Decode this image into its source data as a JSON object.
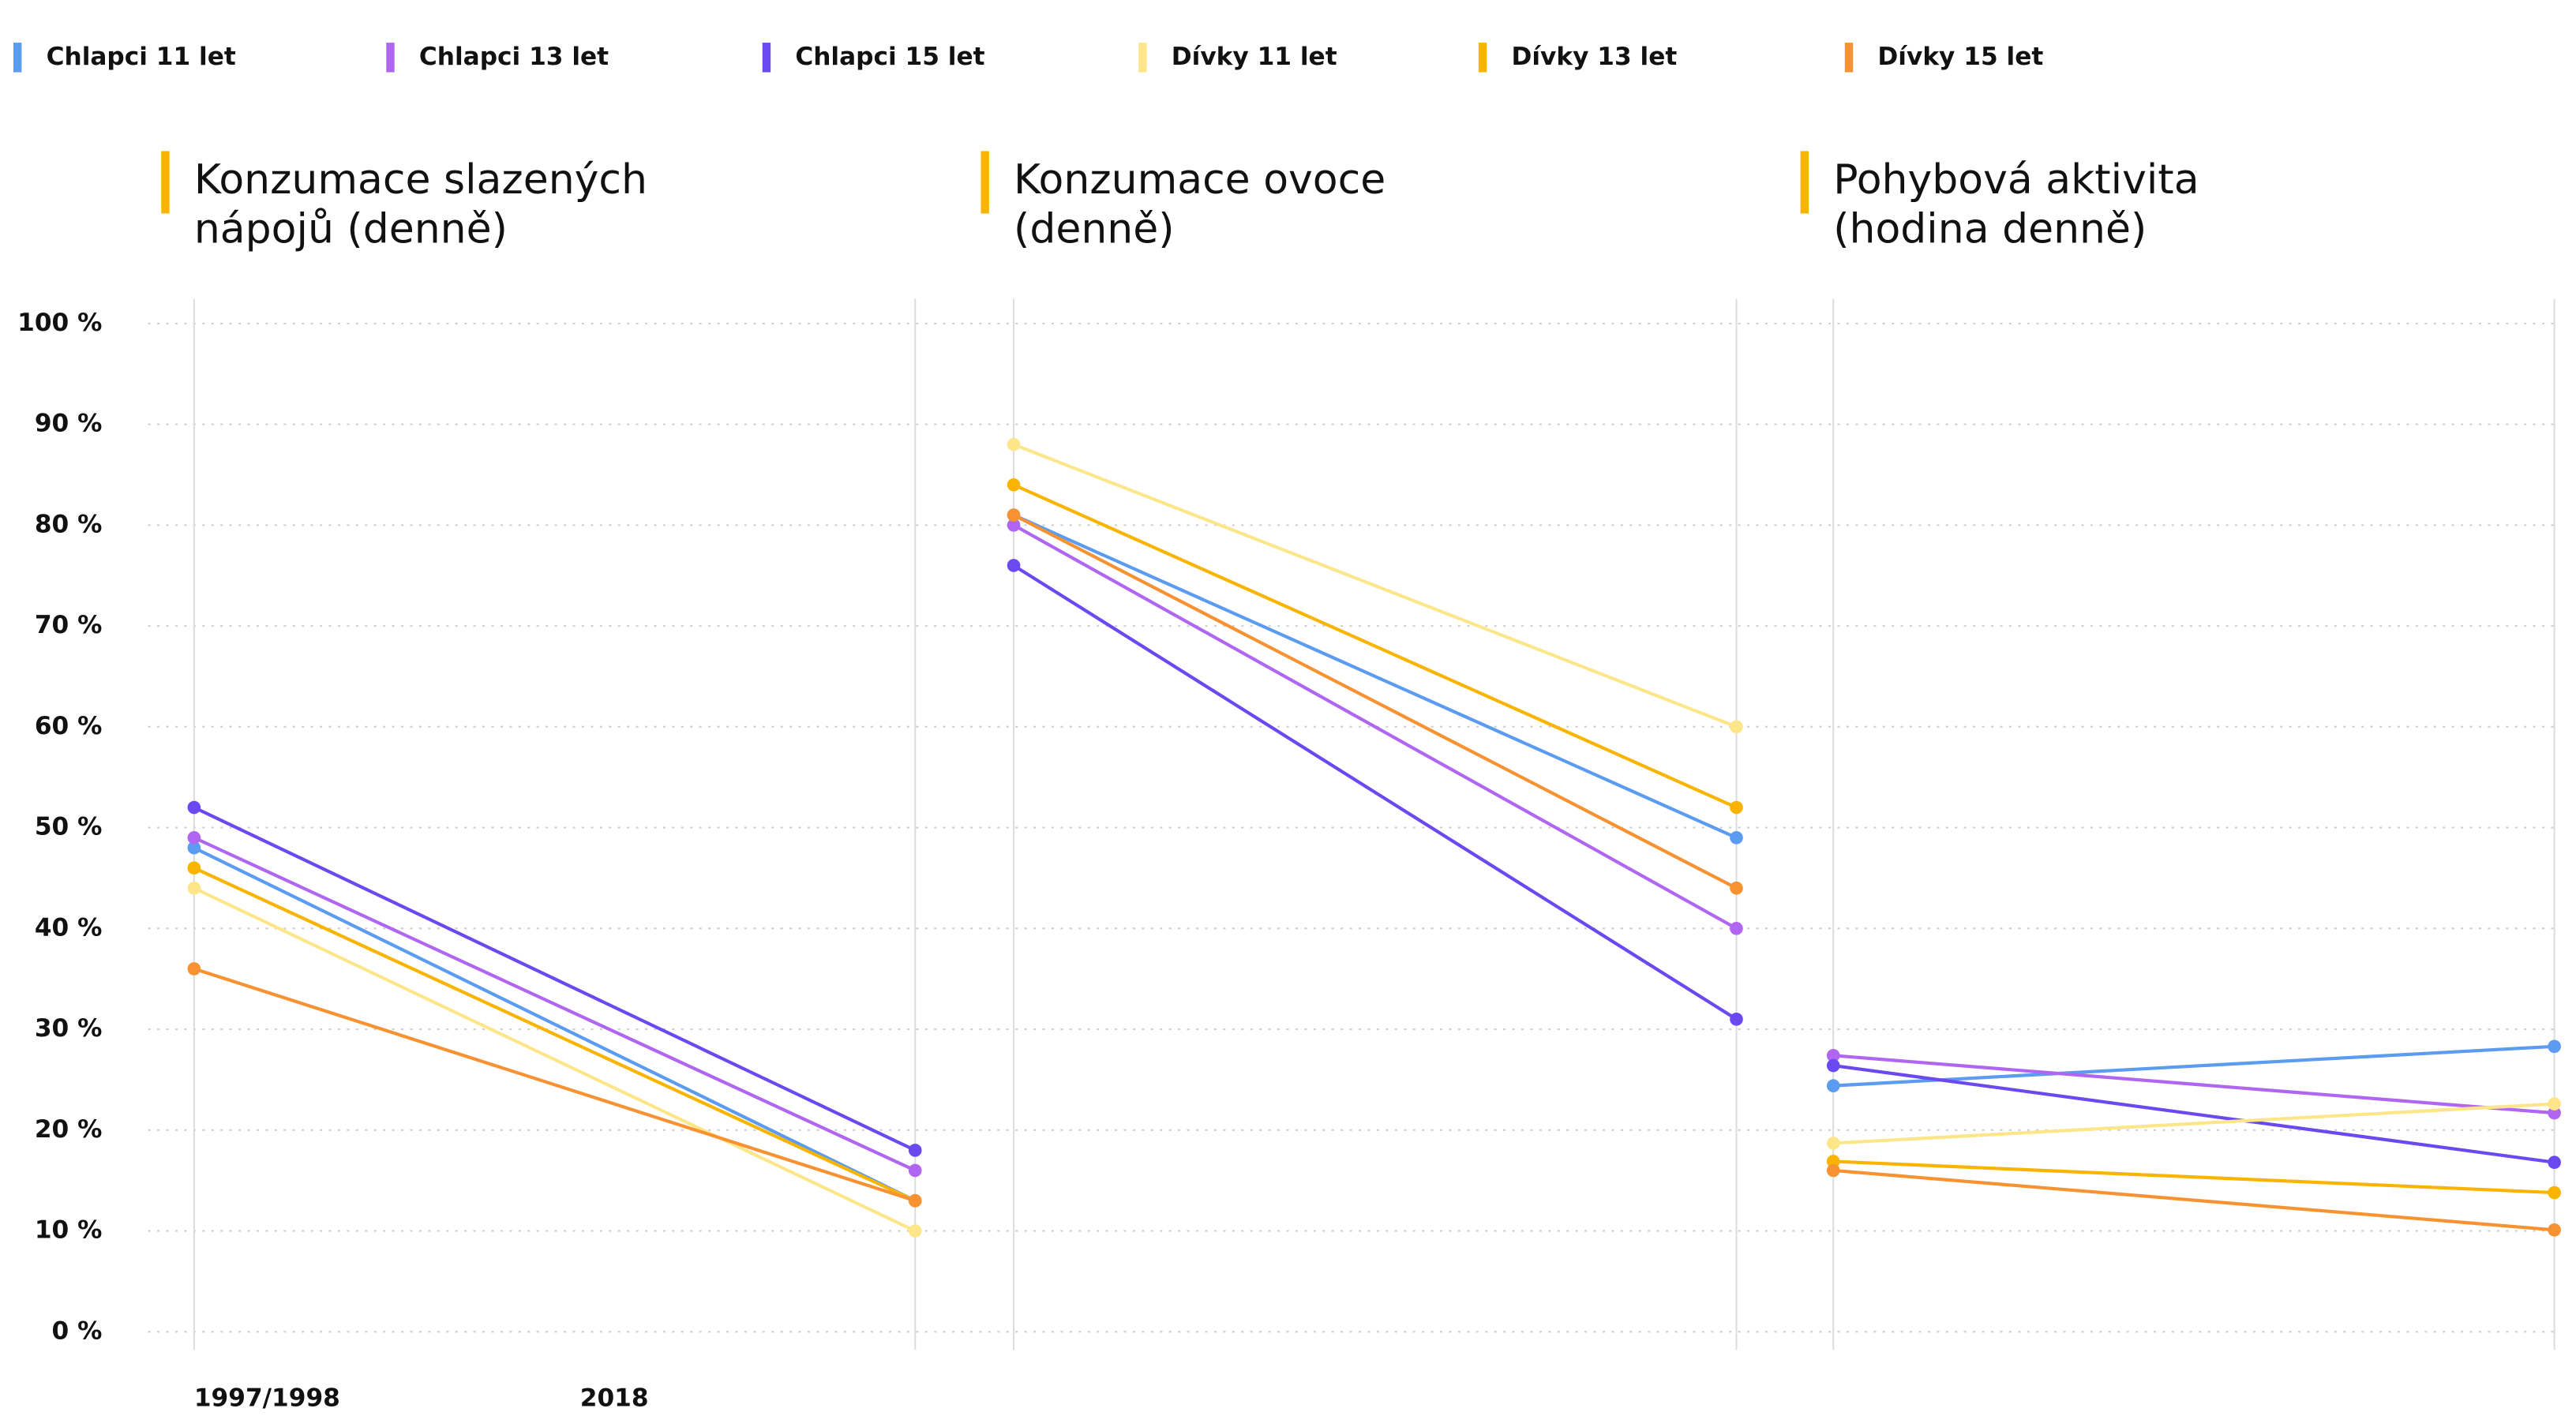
{
  "legend": [
    {
      "name": "Chlapci 11 let",
      "color": "#5b9bf0"
    },
    {
      "name": "Chlapci 13 let",
      "color": "#b066f0"
    },
    {
      "name": "Chlapci 15 let",
      "color": "#6a4af0"
    },
    {
      "name": "Dívky 11 let",
      "color": "#fde68a"
    },
    {
      "name": "Dívky 13 let",
      "color": "#f8b400"
    },
    {
      "name": "Dívky 15 let",
      "color": "#f79232"
    }
  ],
  "categories": [
    "1997/1998",
    "2018"
  ],
  "ylim": [
    0,
    100
  ],
  "yticks": [
    {
      "value": 0,
      "label": "0 %"
    },
    {
      "value": 10,
      "label": "10 %"
    },
    {
      "value": 20,
      "label": "20 %"
    },
    {
      "value": 30,
      "label": "30 %"
    },
    {
      "value": 40,
      "label": "40 %"
    },
    {
      "value": 50,
      "label": "50 %"
    },
    {
      "value": 60,
      "label": "60 %"
    },
    {
      "value": 70,
      "label": "70 %"
    },
    {
      "value": 80,
      "label": "80 %"
    },
    {
      "value": 90,
      "label": "90 %"
    },
    {
      "value": 100,
      "label": "100 %"
    }
  ],
  "grid": true,
  "chart_data": [
    {
      "type": "line",
      "title": [
        "Konzumace slazených",
        "nápojů (denně)"
      ],
      "series": [
        {
          "values": [
            48,
            13
          ]
        },
        {
          "values": [
            49,
            16
          ]
        },
        {
          "values": [
            52,
            18
          ]
        },
        {
          "values": [
            44,
            10
          ]
        },
        {
          "values": [
            46,
            13
          ]
        },
        {
          "values": [
            36,
            13
          ]
        }
      ]
    },
    {
      "type": "line",
      "title": [
        "Konzumace ovoce",
        "(denně)"
      ],
      "series": [
        {
          "values": [
            81,
            49
          ]
        },
        {
          "values": [
            80,
            40
          ]
        },
        {
          "values": [
            76,
            31
          ]
        },
        {
          "values": [
            88,
            60
          ]
        },
        {
          "values": [
            84,
            52
          ]
        },
        {
          "values": [
            81,
            44
          ]
        }
      ]
    },
    {
      "type": "line",
      "title": [
        "Pohybová aktivita",
        "(hodina denně)"
      ],
      "series": [
        {
          "values": [
            24.4,
            28.3
          ]
        },
        {
          "values": [
            27.4,
            21.7
          ]
        },
        {
          "values": [
            26.4,
            16.8
          ]
        },
        {
          "values": [
            18.7,
            22.6
          ]
        },
        {
          "values": [
            16.9,
            13.8
          ]
        },
        {
          "values": [
            16,
            10.1
          ]
        }
      ]
    }
  ]
}
